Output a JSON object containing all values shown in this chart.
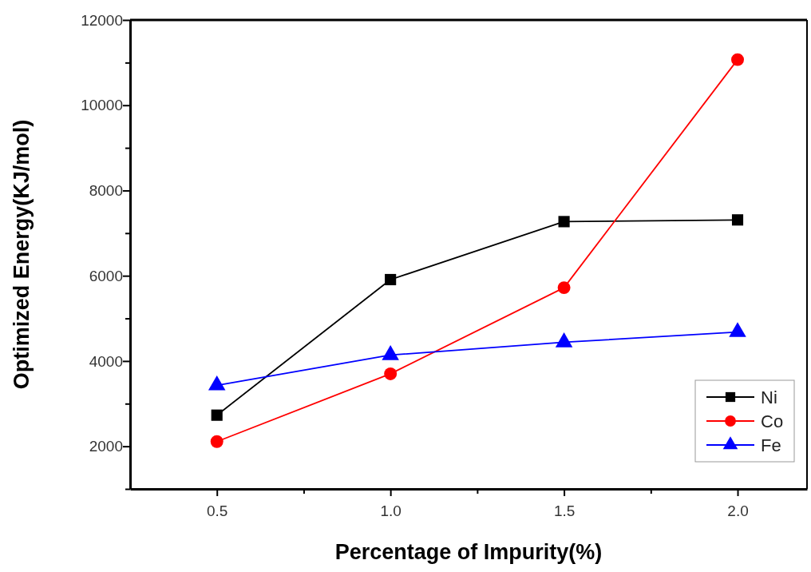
{
  "chart_data": {
    "type": "line",
    "xlabel": "Percentage of Impurity(%)",
    "ylabel": "Optimized Energy(KJ/mol)",
    "x": [
      0.5,
      1.0,
      1.5,
      2.0
    ],
    "series": [
      {
        "name": "Ni",
        "color": "#000000",
        "marker": "square",
        "values": [
          2730,
          5910,
          7270,
          7310
        ]
      },
      {
        "name": "Co",
        "color": "#ff0000",
        "marker": "circle",
        "values": [
          2110,
          3700,
          5720,
          11070
        ]
      },
      {
        "name": "Fe",
        "color": "#0000ff",
        "marker": "triangle",
        "values": [
          3430,
          4140,
          4440,
          4680
        ]
      }
    ],
    "xlim": [
      0.25,
      2.2
    ],
    "xticks": [
      {
        "value": 0.5,
        "label": "0.5"
      },
      {
        "value": 0.75,
        "label": null
      },
      {
        "value": 1.0,
        "label": "1.0"
      },
      {
        "value": 1.25,
        "label": null
      },
      {
        "value": 1.5,
        "label": "1.5"
      },
      {
        "value": 1.75,
        "label": null
      },
      {
        "value": 2.0,
        "label": "2.0"
      }
    ],
    "ylim": [
      1000,
      12000
    ],
    "yticks": [
      {
        "value": 1000,
        "label": null
      },
      2000,
      {
        "value": 3000,
        "label": null
      },
      4000,
      {
        "value": 5000,
        "label": null
      },
      6000,
      {
        "value": 7000,
        "label": null
      },
      8000,
      {
        "value": 9000,
        "label": null
      },
      10000,
      {
        "value": 11000,
        "label": null
      },
      12000
    ],
    "grid": false,
    "legend": "bottom right",
    "line_style": "solid"
  }
}
